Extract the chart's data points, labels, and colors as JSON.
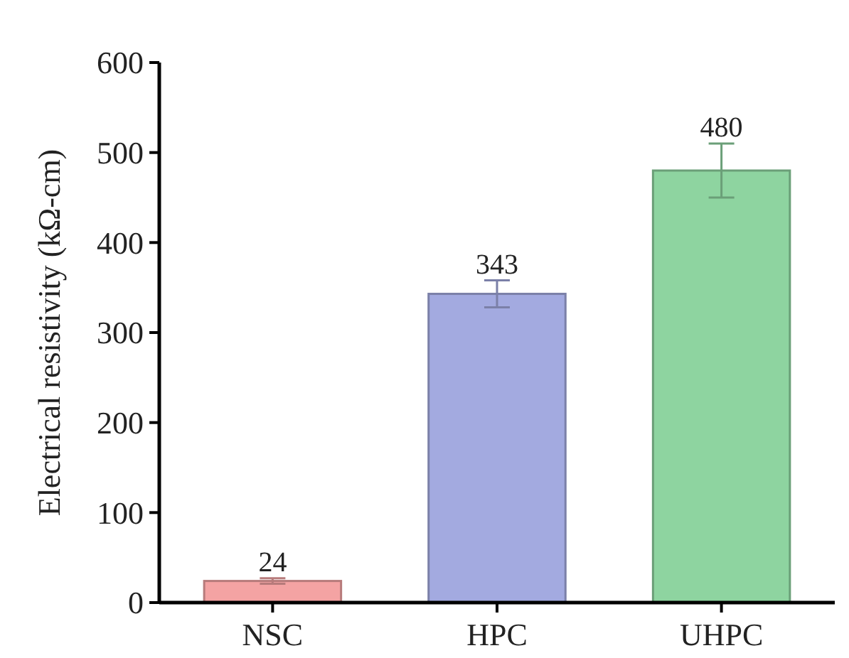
{
  "chart_data": {
    "type": "bar",
    "ylabel": "Electrical resistivity (kΩ-cm)",
    "categories": [
      "NSC",
      "HPC",
      "UHPC"
    ],
    "values": [
      24,
      343,
      480
    ],
    "errors": [
      3,
      15,
      30
    ],
    "colors": [
      "#f4a3a3",
      "#a3aae0",
      "#8ed4a0"
    ],
    "data_labels": true,
    "ylim": [
      0,
      600
    ],
    "yticks": [
      0,
      100,
      200,
      300,
      400,
      500,
      600
    ],
    "grid": false
  }
}
